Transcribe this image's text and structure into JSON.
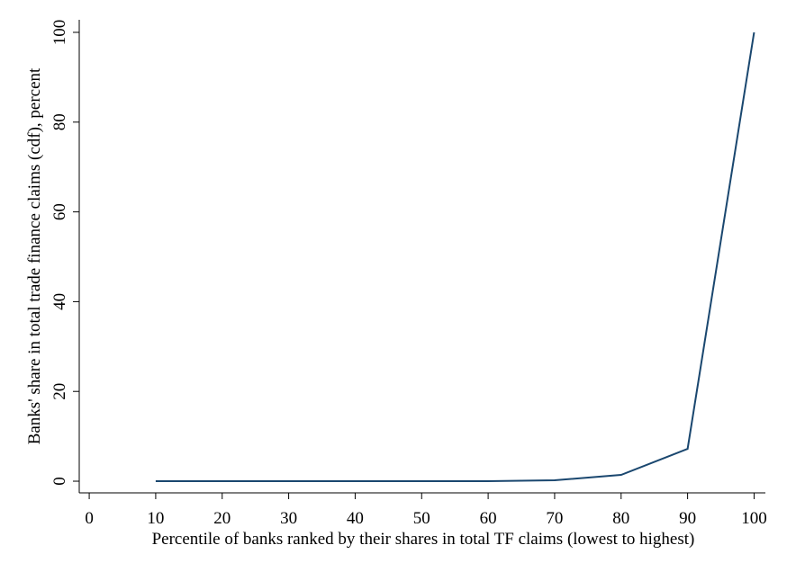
{
  "chart_data": {
    "type": "line",
    "x_label": "Percentile of banks ranked by their shares in total TF claims (lowest to highest)",
    "y_label": "Banks' share in total trade finance claims (cdf), percent",
    "x": [
      10,
      20,
      30,
      40,
      50,
      60,
      70,
      80,
      90,
      100
    ],
    "series": [
      {
        "name": "cdf",
        "color": "#1a476f",
        "values": [
          0,
          0,
          0,
          0,
          0,
          0,
          0.2,
          1.4,
          7.2,
          100
        ]
      }
    ],
    "xlim": [
      -1.5,
      101.7
    ],
    "ylim": [
      -2.6,
      102.8
    ],
    "xticks": [
      0,
      10,
      20,
      30,
      40,
      50,
      60,
      70,
      80,
      90,
      100
    ],
    "yticks": [
      0,
      20,
      40,
      60,
      80,
      100
    ],
    "grid": false,
    "legend": false
  }
}
